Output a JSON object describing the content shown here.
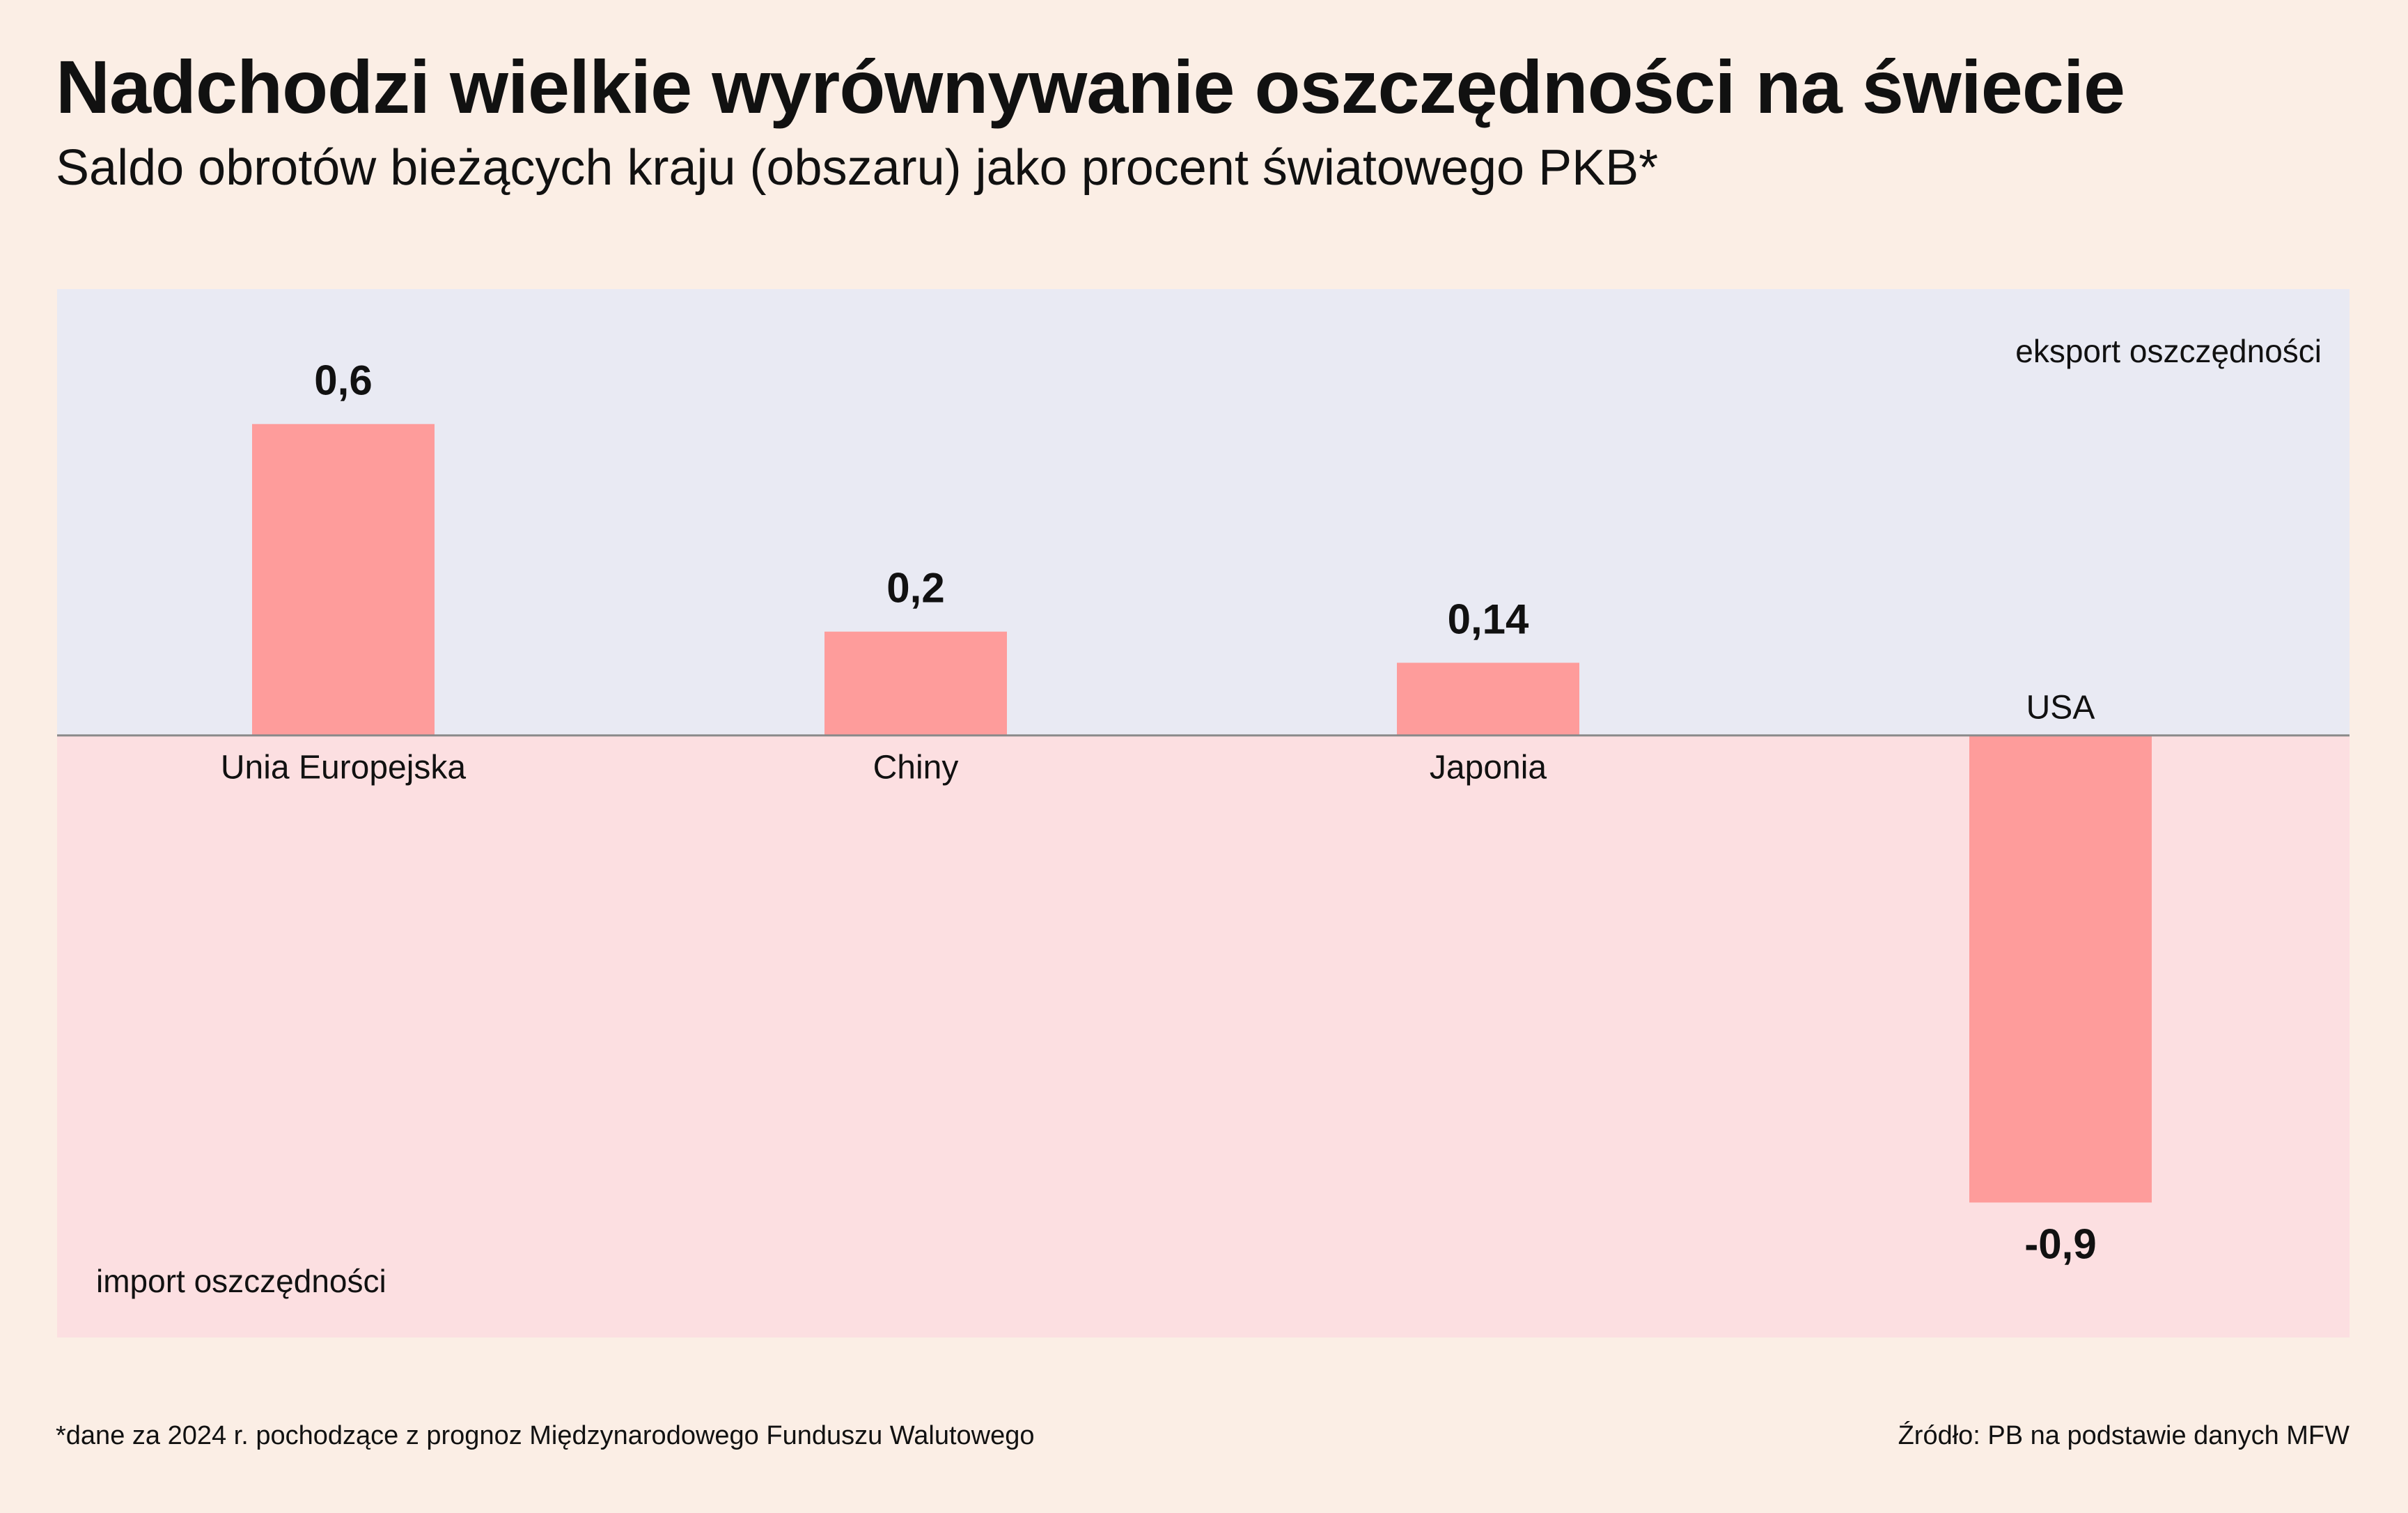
{
  "title": "Nadchodzi wielkie wyrównywanie oszczędności na świecie",
  "subtitle": "Saldo obrotów bieżących kraju (obszaru) jako procent światowego PKB*",
  "footnote": "*dane za 2024 r. pochodzące z prognoz Międzynarodowego Funduszu Walutowego",
  "source": "Źródło: PB na podstawie danych MFW",
  "chart_data": {
    "type": "bar",
    "categories": [
      "Unia Europejska",
      "Chiny",
      "Japonia",
      "USA"
    ],
    "values": [
      0.6,
      0.2,
      0.14,
      -0.9
    ],
    "value_labels": [
      "0,6",
      "0,2",
      "0,14",
      "-0,9"
    ],
    "ylim": [
      -1.16,
      0.86
    ],
    "grid": false,
    "region_labels": {
      "positive": "eksport oszczędności",
      "negative": "import oszczędności"
    },
    "colors": {
      "bar": "#fe9c9b",
      "positive_region": "#e9eaf3",
      "negative_region": "#fcdfe1",
      "baseline": "#8a8a8a",
      "background": "#fbeee5"
    }
  }
}
